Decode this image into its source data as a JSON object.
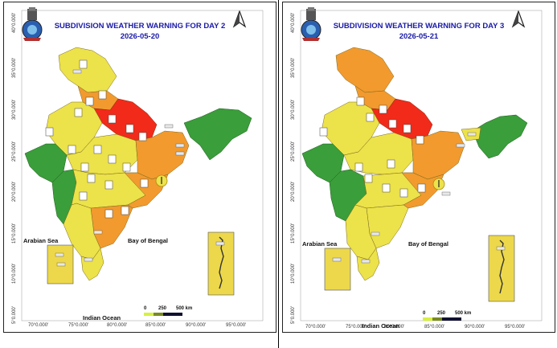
{
  "panels": [
    {
      "title": "SUBDIVISION WEATHER WARNING FOR DAY 2",
      "date": "2026-05-20",
      "lat_ticks": [
        "40°0.000'",
        "35°0.000'",
        "30°0.000'",
        "25°0.000'",
        "20°0.000'",
        "15°0.000'",
        "10°0.000'",
        "5°0.000'"
      ],
      "lon_ticks": [
        "70°0.000'",
        "75°0.000'",
        "80°0.000'",
        "85°0.000'",
        "90°0.000'",
        "95°0.000'"
      ],
      "labels": {
        "arabian_sea": "Arabian Sea",
        "bay_of_bengal": "Bay of Bengal",
        "indian_ocean": "Indian Ocean"
      },
      "scale": {
        "ticks": [
          "0",
          "250",
          "500 km"
        ]
      }
    },
    {
      "title": "SUBDIVISION WEATHER WARNING FOR DAY 3",
      "date": "2026-05-21",
      "lat_ticks": [
        "40°0.000'",
        "35°0.000'",
        "30°0.000'",
        "25°0.000'",
        "20°0.000'",
        "15°0.000'",
        "10°0.000'",
        "5°0.000'"
      ],
      "lon_ticks": [
        "70°0.000'",
        "75°0.000'",
        "80°0.000'",
        "85°0.000'",
        "90°0.000'",
        "95°0.000'"
      ],
      "labels": {
        "arabian_sea": "Arabian Sea",
        "bay_of_bengal": "Bay of Bengal",
        "indian_ocean": "Indian Ocean"
      },
      "scale": {
        "ticks": [
          "0",
          "250",
          "500 km"
        ]
      }
    }
  ],
  "legend_colors": {
    "red": "#f22a1a",
    "orange": "#f29a2e",
    "yellow": "#ece24a",
    "green": "#3a9e3a",
    "islands_fill": "#ecd84a",
    "title": "#1a1aa8"
  },
  "icons": [
    "imd-emblem-icon",
    "north-arrow-icon",
    "thermometer-warning-icon",
    "thunderstorm-icon",
    "sun-warning-icon"
  ]
}
